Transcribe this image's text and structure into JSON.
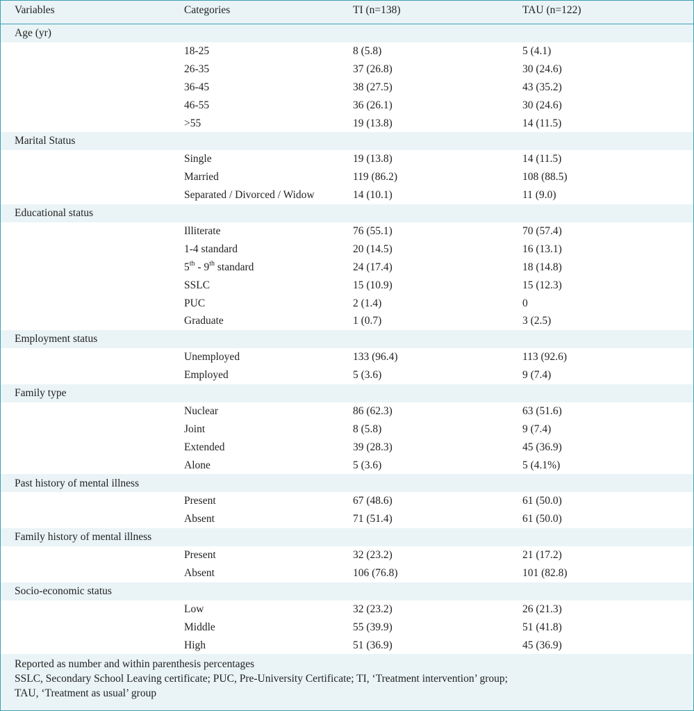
{
  "header": {
    "col_variables": "Variables",
    "col_categories": "Categories",
    "col_ti": "TI (n=138)",
    "col_tau": "TAU (n=122)"
  },
  "groups": [
    {
      "label": "Age (yr)",
      "rows": [
        {
          "cat": "18-25",
          "ti": "8 (5.8)",
          "tau": "5 (4.1)"
        },
        {
          "cat": "26-35",
          "ti": "37 (26.8)",
          "tau": "30 (24.6)"
        },
        {
          "cat": "36-45",
          "ti": "38 (27.5)",
          "tau": "43 (35.2)"
        },
        {
          "cat": "46-55",
          "ti": "36 (26.1)",
          "tau": "30 (24.6)"
        },
        {
          "cat": ">55",
          "ti": "19 (13.8)",
          "tau": "14 (11.5)"
        }
      ]
    },
    {
      "label": "Marital Status",
      "rows": [
        {
          "cat": "Single",
          "ti": "19 (13.8)",
          "tau": "14 (11.5)"
        },
        {
          "cat": "Married",
          "ti": "119 (86.2)",
          "tau": "108 (88.5)"
        },
        {
          "cat": "Separated / Divorced / Widow",
          "ti": "14 (10.1)",
          "tau": "11 (9.0)"
        }
      ]
    },
    {
      "label": "Educational status",
      "rows": [
        {
          "cat": "Illiterate",
          "ti": "76 (55.1)",
          "tau": "70 (57.4)"
        },
        {
          "cat": "1-4 standard",
          "ti": "20 (14.5)",
          "tau": "16 (13.1)"
        },
        {
          "cat": "5th - 9th standard",
          "cat_parts": [
            "5",
            "th",
            " - 9",
            "th",
            " standard"
          ],
          "ti": "24 (17.4)",
          "tau": "18 (14.8)"
        },
        {
          "cat": "SSLC",
          "ti": "15 (10.9)",
          "tau": "15 (12.3)"
        },
        {
          "cat": "PUC",
          "ti": "2 (1.4)",
          "tau": "0"
        },
        {
          "cat": "Graduate",
          "ti": "1 (0.7)",
          "tau": "3 (2.5)"
        }
      ]
    },
    {
      "label": "Employment status",
      "rows": [
        {
          "cat": "Unemployed",
          "ti": "133 (96.4)",
          "tau": "113 (92.6)"
        },
        {
          "cat": "Employed",
          "ti": "5 (3.6)",
          "tau": "9 (7.4)"
        }
      ]
    },
    {
      "label": "Family type",
      "rows": [
        {
          "cat": "Nuclear",
          "ti": "86 (62.3)",
          "tau": "63 (51.6)"
        },
        {
          "cat": "Joint",
          "ti": "8 (5.8)",
          "tau": "9 (7.4)"
        },
        {
          "cat": "Extended",
          "ti": "39 (28.3)",
          "tau": "45 (36.9)"
        },
        {
          "cat": "Alone",
          "ti": "5 (3.6)",
          "tau": "5 (4.1%)"
        }
      ]
    },
    {
      "label": "Past history of mental illness",
      "rows": [
        {
          "cat": "Present",
          "ti": "67 (48.6)",
          "tau": "61 (50.0)"
        },
        {
          "cat": "Absent",
          "ti": "71 (51.4)",
          "tau": "61 (50.0)"
        }
      ]
    },
    {
      "label": "Family history of mental illness",
      "rows": [
        {
          "cat": "Present",
          "ti": "32 (23.2)",
          "tau": "21 (17.2)"
        },
        {
          "cat": "Absent",
          "ti": "106 (76.8)",
          "tau": "101 (82.8)"
        }
      ]
    },
    {
      "label": "Socio-economic status",
      "rows": [
        {
          "cat": "Low",
          "ti": "32 (23.2)",
          "tau": "26 (21.3)"
        },
        {
          "cat": "Middle",
          "ti": "55 (39.9)",
          "tau": "51 (41.8)"
        },
        {
          "cat": "High",
          "ti": "51 (36.9)",
          "tau": "45 (36.9)"
        }
      ]
    }
  ],
  "footnotes": [
    "Reported as number and within parenthesis percentages",
    "SSLC, Secondary School Leaving certificate; PUC, Pre-University Certificate; TI, ‘Treatment intervention’ group;",
    "TAU, ‘Treatment as usual’ group"
  ]
}
